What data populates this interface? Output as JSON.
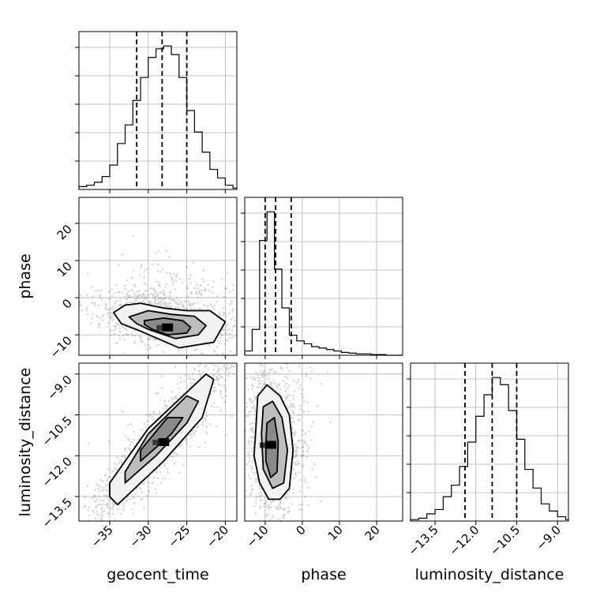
{
  "chart_data": {
    "type": "corner",
    "variables": [
      "geocent_time",
      "phase",
      "luminosity_distance"
    ],
    "ranges": {
      "geocent_time": [
        -39.0,
        -18.5
      ],
      "phase": [
        -15.5,
        27.0
      ],
      "luminosity_distance": [
        -14.4,
        -8.6
      ]
    },
    "ticks": {
      "geocent_time": [
        {
          "v": -35,
          "label": "−35"
        },
        {
          "v": -30,
          "label": "−30"
        },
        {
          "v": -25,
          "label": "−25"
        },
        {
          "v": -20,
          "label": "−20"
        }
      ],
      "phase": [
        {
          "v": -10,
          "label": "−10"
        },
        {
          "v": 0,
          "label": "0"
        },
        {
          "v": 10,
          "label": "10"
        },
        {
          "v": 20,
          "label": "20"
        }
      ],
      "luminosity_distance": [
        {
          "v": -13.5,
          "label": "−13.5"
        },
        {
          "v": -12.0,
          "label": "−12.0"
        },
        {
          "v": -10.5,
          "label": "−10.5"
        },
        {
          "v": -9.0,
          "label": "−9.0"
        }
      ]
    },
    "quantiles": {
      "geocent_time": [
        -31.5,
        -28.2,
        -25.0
      ],
      "phase": [
        -10.0,
        -7.2,
        -3.0
      ],
      "luminosity_distance": [
        -12.4,
        -11.4,
        -10.5
      ]
    },
    "histograms": {
      "geocent_time": {
        "edges": [
          -39.0,
          -38.0,
          -37.0,
          -36.0,
          -35.0,
          -34.0,
          -33.0,
          -32.0,
          -31.0,
          -30.0,
          -29.0,
          -28.0,
          -27.0,
          -26.0,
          -25.0,
          -24.0,
          -23.0,
          -22.0,
          -21.0,
          -20.0,
          -19.0,
          -18.5
        ],
        "counts": [
          2,
          3,
          5,
          9,
          17,
          32,
          45,
          62,
          78,
          92,
          98,
          100,
          94,
          78,
          55,
          40,
          26,
          14,
          8,
          3,
          1
        ]
      },
      "phase": {
        "edges": [
          -15.5,
          -13.5,
          -11.5,
          -9.5,
          -7.5,
          -5.5,
          -3.5,
          -1.5,
          0.5,
          2.5,
          4.5,
          6.5,
          8.5,
          10.5,
          12.5,
          14.5,
          16.5,
          18.5,
          20.5,
          22.5,
          24.5,
          27.0
        ],
        "counts": [
          3,
          18,
          80,
          100,
          60,
          33,
          14,
          10,
          8,
          6,
          5,
          4,
          3,
          2,
          1.5,
          1,
          1,
          0.5,
          0.5,
          0,
          0
        ]
      },
      "luminosity_distance": {
        "edges": [
          -14.4,
          -14.1,
          -13.8,
          -13.5,
          -13.2,
          -12.9,
          -12.6,
          -12.3,
          -12.0,
          -11.7,
          -11.4,
          -11.1,
          -10.8,
          -10.5,
          -10.2,
          -9.9,
          -9.6,
          -9.3,
          -9.0,
          -8.7,
          -8.6
        ],
        "counts": [
          1,
          2,
          5,
          8,
          17,
          25,
          38,
          55,
          73,
          88,
          100,
          95,
          77,
          57,
          36,
          23,
          12,
          7,
          3,
          1
        ]
      }
    },
    "pairs": [
      {
        "x": "geocent_time",
        "y": "phase",
        "peak": [
          -27.5,
          -8.0
        ],
        "contours": [
          [
            [
              -34.5,
              -4.0
            ],
            [
              -33.0,
              -2.0
            ],
            [
              -31.0,
              -1.5
            ],
            [
              -28.0,
              -2.8
            ],
            [
              -25.0,
              -3.5
            ],
            [
              -22.0,
              -3.5
            ],
            [
              -20.0,
              -6.5
            ],
            [
              -21.5,
              -12.0
            ],
            [
              -26.0,
              -13.5
            ],
            [
              -31.0,
              -9.0
            ],
            [
              -33.5,
              -7.0
            ]
          ],
          [
            [
              -32.5,
              -5.2
            ],
            [
              -30.0,
              -3.5
            ],
            [
              -27.0,
              -4.5
            ],
            [
              -24.0,
              -5.0
            ],
            [
              -22.5,
              -7.5
            ],
            [
              -23.5,
              -10.0
            ],
            [
              -26.5,
              -11.0
            ],
            [
              -30.0,
              -8.5
            ],
            [
              -31.5,
              -7.0
            ]
          ],
          [
            [
              -30.5,
              -6.2
            ],
            [
              -28.0,
              -5.5
            ],
            [
              -25.5,
              -6.2
            ],
            [
              -24.5,
              -8.0
            ],
            [
              -25.0,
              -9.5
            ],
            [
              -27.5,
              -10.0
            ],
            [
              -29.5,
              -8.5
            ],
            [
              -30.5,
              -7.2
            ]
          ]
        ]
      },
      {
        "x": "geocent_time",
        "y": "luminosity_distance",
        "peak": [
          -28.0,
          -11.5
        ],
        "contours": [
          [
            [
              -35.0,
              -13.5
            ],
            [
              -34.0,
              -13.8
            ],
            [
              -28.0,
              -12.2
            ],
            [
              -23.0,
              -10.6
            ],
            [
              -21.5,
              -9.2
            ],
            [
              -22.5,
              -9.0
            ],
            [
              -30.0,
              -11.0
            ],
            [
              -35.0,
              -13.0
            ]
          ],
          [
            [
              -33.0,
              -13.0
            ],
            [
              -29.0,
              -12.0
            ],
            [
              -25.0,
              -10.8
            ],
            [
              -23.5,
              -10.0
            ],
            [
              -25.0,
              -9.8
            ],
            [
              -30.0,
              -11.2
            ],
            [
              -33.0,
              -12.6
            ]
          ],
          [
            [
              -31.0,
              -12.2
            ],
            [
              -27.0,
              -11.2
            ],
            [
              -25.5,
              -10.6
            ],
            [
              -27.5,
              -10.6
            ],
            [
              -31.0,
              -11.8
            ]
          ]
        ]
      },
      {
        "x": "phase",
        "y": "luminosity_distance",
        "peak": [
          -8.5,
          -11.6
        ],
        "contours": [
          [
            [
              -12.5,
              -11.0
            ],
            [
              -12.0,
              -9.8
            ],
            [
              -9.5,
              -9.4
            ],
            [
              -6.0,
              -9.8
            ],
            [
              -3.5,
              -10.5
            ],
            [
              -2.5,
              -11.8
            ],
            [
              -3.5,
              -13.2
            ],
            [
              -6.0,
              -13.6
            ],
            [
              -9.0,
              -13.6
            ],
            [
              -11.5,
              -13.0
            ],
            [
              -13.0,
              -12.0
            ]
          ],
          [
            [
              -11.0,
              -11.2
            ],
            [
              -10.5,
              -10.2
            ],
            [
              -8.0,
              -10.0
            ],
            [
              -5.5,
              -10.6
            ],
            [
              -4.0,
              -11.8
            ],
            [
              -5.0,
              -13.0
            ],
            [
              -8.0,
              -13.2
            ],
            [
              -10.5,
              -12.5
            ]
          ],
          [
            [
              -9.8,
              -11.5
            ],
            [
              -9.5,
              -10.8
            ],
            [
              -7.5,
              -10.6
            ],
            [
              -6.5,
              -11.5
            ],
            [
              -6.8,
              -12.6
            ],
            [
              -8.5,
              -12.8
            ],
            [
              -9.8,
              -12.2
            ]
          ]
        ]
      }
    ]
  }
}
